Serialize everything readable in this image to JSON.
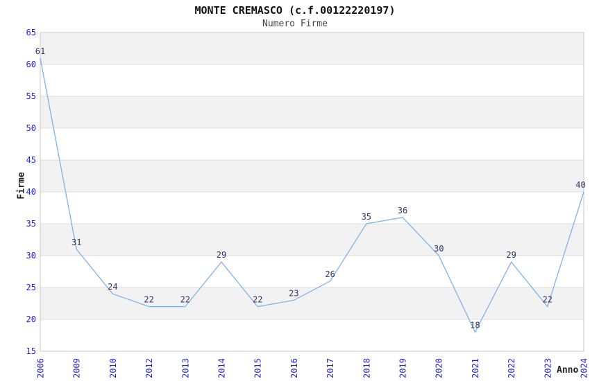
{
  "chart": {
    "title": "MONTE CREMASCO (c.f.00122220197)",
    "subtitle": "Numero Firme",
    "ylabel": "Firme",
    "xlabel": "Anno"
  },
  "chart_data": {
    "type": "line",
    "title": "MONTE CREMASCO (c.f.00122220197)",
    "subtitle": "Numero Firme",
    "xlabel": "Anno",
    "ylabel": "Firme",
    "categories": [
      "2006",
      "2009",
      "2010",
      "2012",
      "2013",
      "2014",
      "2015",
      "2016",
      "2017",
      "2018",
      "2019",
      "2020",
      "2021",
      "2022",
      "2023",
      "2024"
    ],
    "values": [
      61,
      31,
      24,
      22,
      22,
      29,
      22,
      23,
      26,
      35,
      36,
      30,
      18,
      29,
      22,
      40
    ],
    "data_labels_shown": true,
    "ylim": [
      15,
      65
    ],
    "ytick_step": 5,
    "yticks": [
      15,
      20,
      25,
      30,
      35,
      40,
      45,
      50,
      55,
      60,
      65
    ],
    "legend": "none",
    "grid": "alternating-horizontal-bands",
    "colors": {
      "line": "#7db2e8",
      "tick_label": "#2323cc",
      "data_label": "#333366",
      "band_fill": "#f2f2f2",
      "plot_border": "#c9c9c9",
      "gridline": "#dedede",
      "title": "#111111",
      "subtitle": "#444444",
      "axis_label": "#222222",
      "background": "#ffffff"
    }
  }
}
